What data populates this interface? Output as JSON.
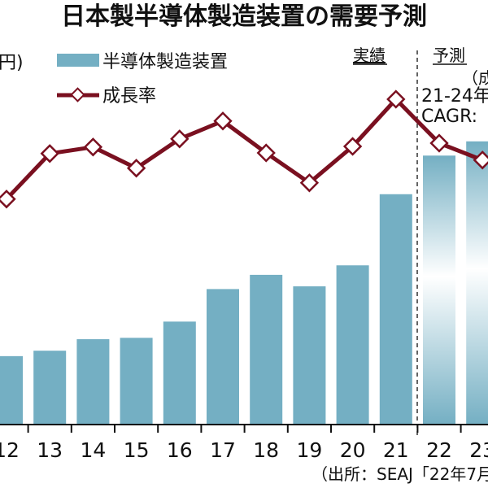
{
  "chart_data": {
    "type": "bar+line",
    "title": "日本製半導体製造装置の需要予測",
    "unit_label_fragment": "円)",
    "categories": [
      "12",
      "13",
      "14",
      "15",
      "16",
      "17",
      "18",
      "19",
      "20",
      "21",
      "22",
      "23"
    ],
    "series": [
      {
        "name": "半導体製造装置",
        "type": "bar",
        "color": "#74afc3",
        "values": [
          1.01,
          1.09,
          1.26,
          1.28,
          1.52,
          2.0,
          2.21,
          2.04,
          2.35,
          3.4,
          3.97,
          4.18
        ]
      },
      {
        "name": "成長率",
        "type": "line",
        "color": "#7a1020",
        "marker": "diamond",
        "values": [
          13.8,
          27.8,
          29.8,
          23.3,
          32.3,
          37.8,
          28.0,
          18.8,
          30.0,
          44.5,
          31.0,
          25.8
        ]
      }
    ],
    "forecast_from": "22",
    "annotations": {
      "actual": "実績",
      "forecast": "予測",
      "forecast_note_fragment": "（成",
      "cagr_period_fragment": "21-24年",
      "cagr_fragment": "CAGR:"
    },
    "source": "（出所：SEAJ「22年7月",
    "legend_position": "top-left",
    "grid": false
  }
}
